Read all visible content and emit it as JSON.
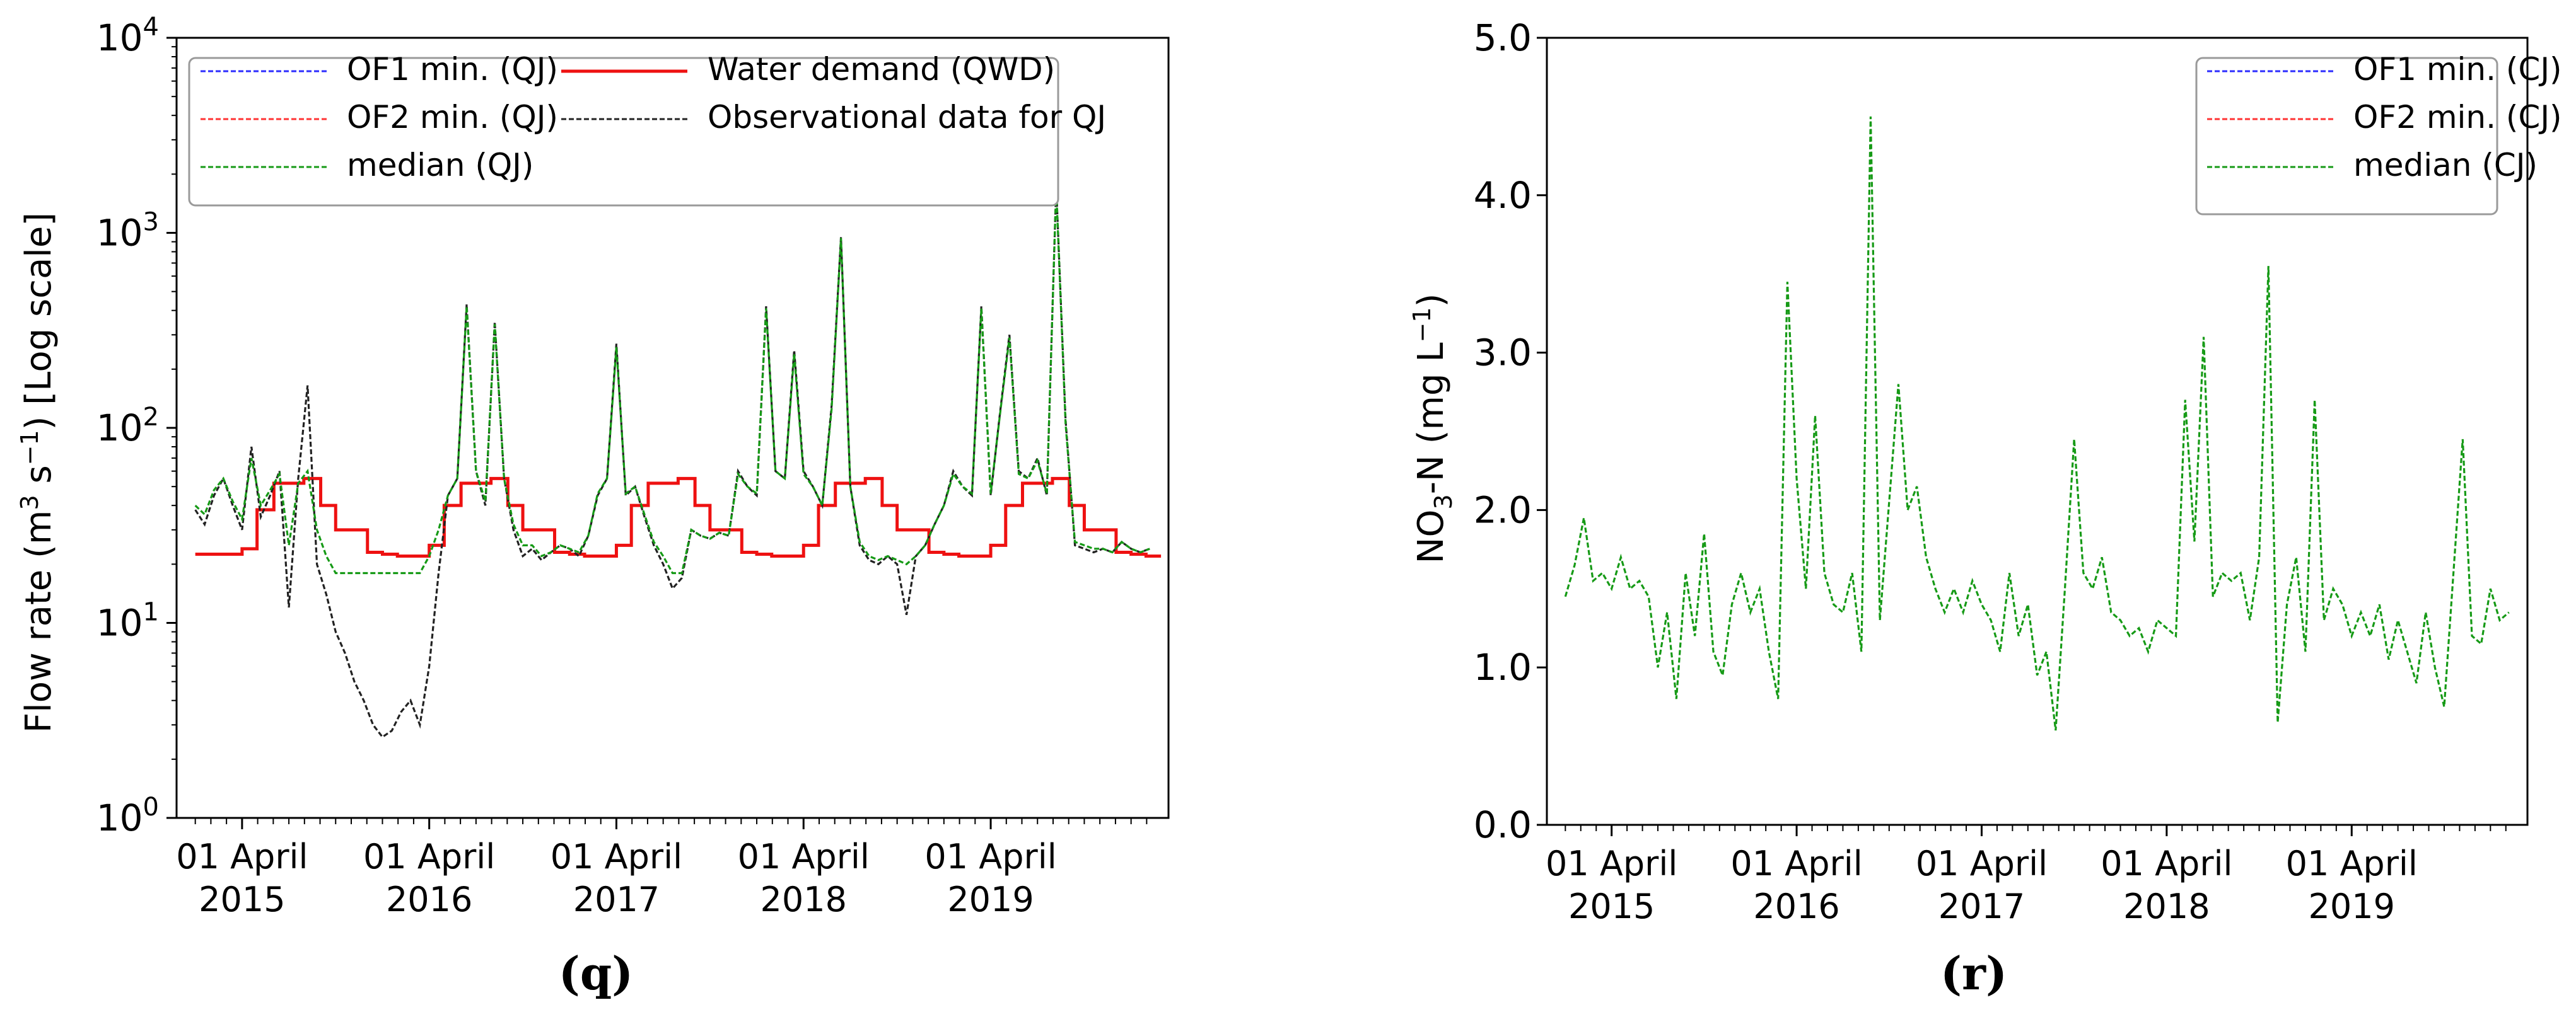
{
  "colors": {
    "of1": "#2b2bff",
    "of2": "#ff3333",
    "median": "#169a16",
    "demand": "#ee1111",
    "observed": "#222222",
    "axis": "#000000"
  },
  "chart_data": [
    {
      "panel": "q",
      "type": "line",
      "caption": "(q)",
      "yscale": "log",
      "ylim": [
        1,
        10000
      ],
      "yticks": [
        1,
        10,
        100,
        1000,
        10000
      ],
      "ytick_labels": [
        {
          "base": "10",
          "exp": "0"
        },
        {
          "base": "10",
          "exp": "1"
        },
        {
          "base": "10",
          "exp": "2"
        },
        {
          "base": "10",
          "exp": "3"
        },
        {
          "base": "10",
          "exp": "4"
        }
      ],
      "ylabel": {
        "prefix": "Flow rate (m",
        "sup1": "3",
        "mid": " s",
        "sup2": "−1",
        "suffix": ") [Log scale]"
      },
      "xlim": [
        2014.9,
        2020.2
      ],
      "xticks": [
        2015.25,
        2016.25,
        2017.25,
        2018.25,
        2019.25
      ],
      "xtick_labels": [
        [
          "01 April",
          "2015"
        ],
        [
          "01 April",
          "2016"
        ],
        [
          "01 April",
          "2017"
        ],
        [
          "01 April",
          "2018"
        ],
        [
          "01 April",
          "2019"
        ]
      ],
      "legend": {
        "position": "top",
        "entries": [
          {
            "label": "OF1 min. (QJ)",
            "style": "dashed",
            "color_key": "of1"
          },
          {
            "label": "OF2 min. (QJ)",
            "style": "dashed",
            "color_key": "of2"
          },
          {
            "label": "median (QJ)",
            "style": "dashed",
            "color_key": "median"
          },
          {
            "label": "Water demand (QWD)",
            "style": "solid",
            "color_key": "demand"
          },
          {
            "label": "Observational data for QJ",
            "style": "dashed",
            "color_key": "observed"
          }
        ]
      },
      "series": [
        {
          "name": "Water demand (QWD)",
          "color_key": "demand",
          "style": "solid",
          "step": true,
          "x": [
            2015.0,
            2015.25,
            2015.33,
            2015.42,
            2015.58,
            2015.67,
            2015.75,
            2015.92,
            2016.0,
            2016.08,
            2016.25,
            2016.33,
            2016.42,
            2016.58,
            2016.67,
            2016.75,
            2016.92,
            2017.0,
            2017.08,
            2017.25,
            2017.33,
            2017.42,
            2017.58,
            2017.67,
            2017.75,
            2017.92,
            2018.0,
            2018.08,
            2018.25,
            2018.33,
            2018.42,
            2018.58,
            2018.67,
            2018.75,
            2018.92,
            2019.0,
            2019.08,
            2019.25,
            2019.33,
            2019.42,
            2019.58,
            2019.67,
            2019.75,
            2019.92,
            2020.0,
            2020.08
          ],
          "y": [
            22.5,
            24,
            38,
            52,
            55,
            40,
            30,
            23,
            22.5,
            22,
            25,
            40,
            52,
            55,
            40,
            30,
            23,
            22.5,
            22,
            25,
            40,
            52,
            55,
            40,
            30,
            23,
            22.5,
            22,
            25,
            40,
            52,
            55,
            40,
            30,
            23,
            22.5,
            22,
            25,
            40,
            52,
            55,
            40,
            30,
            23,
            22.5,
            22
          ]
        },
        {
          "name": "Observational data for QJ",
          "color_key": "observed",
          "style": "dashed",
          "x": [
            2015.0,
            2015.05,
            2015.1,
            2015.15,
            2015.2,
            2015.25,
            2015.3,
            2015.35,
            2015.4,
            2015.45,
            2015.5,
            2015.55,
            2015.6,
            2015.65,
            2015.7,
            2015.75,
            2015.8,
            2015.85,
            2015.9,
            2015.95,
            2016.0,
            2016.05,
            2016.1,
            2016.15,
            2016.2,
            2016.25,
            2016.3,
            2016.35,
            2016.4,
            2016.45,
            2016.5,
            2016.55,
            2016.6,
            2016.65,
            2016.7,
            2016.75,
            2016.8,
            2016.85,
            2016.9,
            2016.95,
            2017.0,
            2017.05,
            2017.1,
            2017.15,
            2017.2,
            2017.25,
            2017.3,
            2017.35,
            2017.4,
            2017.45,
            2017.5,
            2017.55,
            2017.6,
            2017.65,
            2017.7,
            2017.75,
            2017.8,
            2017.85,
            2017.9,
            2017.95,
            2018.0,
            2018.05,
            2018.1,
            2018.15,
            2018.2,
            2018.25,
            2018.3,
            2018.35,
            2018.4,
            2018.45,
            2018.5,
            2018.55,
            2018.6,
            2018.65,
            2018.7,
            2018.75,
            2018.8,
            2018.85,
            2018.9,
            2018.95,
            2019.0,
            2019.05,
            2019.1,
            2019.15,
            2019.2,
            2019.25,
            2019.3,
            2019.35,
            2019.4,
            2019.45,
            2019.5,
            2019.55,
            2019.6,
            2019.65,
            2019.7,
            2019.75,
            2019.8,
            2019.85,
            2019.9,
            2019.95,
            2020.0,
            2020.05,
            2020.1
          ],
          "y": [
            38,
            32,
            45,
            55,
            40,
            30,
            80,
            35,
            45,
            60,
            12,
            55,
            165,
            20,
            14,
            9,
            7,
            5,
            4,
            3,
            2.6,
            2.8,
            3.5,
            4,
            3,
            6,
            18,
            45,
            55,
            430,
            60,
            40,
            350,
            55,
            30,
            22,
            24,
            21,
            23,
            25,
            24,
            22,
            28,
            45,
            55,
            270,
            45,
            50,
            35,
            25,
            20,
            15,
            17,
            30,
            28,
            27,
            29,
            28,
            60,
            50,
            45,
            420,
            60,
            55,
            250,
            60,
            50,
            40,
            130,
            950,
            50,
            25,
            21,
            20,
            22,
            20,
            11,
            22,
            25,
            32,
            40,
            60,
            50,
            45,
            420,
            45,
            120,
            300,
            60,
            55,
            70,
            45,
            1750,
            110,
            25,
            24,
            23,
            24,
            23,
            26,
            24,
            23,
            24
          ]
        },
        {
          "name": "median (QJ)",
          "color_key": "median",
          "style": "dashed",
          "x": [
            2015.0,
            2015.05,
            2015.1,
            2015.15,
            2015.2,
            2015.25,
            2015.3,
            2015.35,
            2015.4,
            2015.45,
            2015.5,
            2015.55,
            2015.6,
            2015.65,
            2015.7,
            2015.75,
            2015.8,
            2015.85,
            2015.9,
            2015.95,
            2016.0,
            2016.05,
            2016.1,
            2016.15,
            2016.2,
            2016.25,
            2016.3,
            2016.35,
            2016.4,
            2016.45,
            2016.5,
            2016.55,
            2016.6,
            2016.65,
            2016.7,
            2016.75,
            2016.8,
            2016.85,
            2016.9,
            2016.95,
            2017.0,
            2017.05,
            2017.1,
            2017.15,
            2017.2,
            2017.25,
            2017.3,
            2017.35,
            2017.4,
            2017.45,
            2017.5,
            2017.55,
            2017.6,
            2017.65,
            2017.7,
            2017.75,
            2017.8,
            2017.85,
            2017.9,
            2017.95,
            2018.0,
            2018.05,
            2018.1,
            2018.15,
            2018.2,
            2018.25,
            2018.3,
            2018.35,
            2018.4,
            2018.45,
            2018.5,
            2018.55,
            2018.6,
            2018.65,
            2018.7,
            2018.75,
            2018.8,
            2018.85,
            2018.9,
            2018.95,
            2019.0,
            2019.05,
            2019.1,
            2019.15,
            2019.2,
            2019.25,
            2019.3,
            2019.35,
            2019.4,
            2019.45,
            2019.5,
            2019.55,
            2019.6,
            2019.65,
            2019.7,
            2019.75,
            2019.8,
            2019.85,
            2019.9,
            2019.95,
            2020.0,
            2020.05,
            2020.1
          ],
          "y": [
            40,
            36,
            48,
            55,
            42,
            34,
            70,
            40,
            48,
            58,
            25,
            52,
            60,
            30,
            22,
            18,
            18,
            18,
            18,
            18,
            18,
            18,
            18,
            18,
            18,
            22,
            30,
            45,
            55,
            420,
            60,
            42,
            340,
            55,
            32,
            25,
            25,
            22,
            23,
            25,
            24,
            23,
            28,
            46,
            55,
            260,
            46,
            50,
            36,
            26,
            22,
            18,
            18,
            30,
            28,
            27,
            29,
            28,
            58,
            50,
            46,
            410,
            60,
            55,
            240,
            58,
            50,
            40,
            125,
            940,
            50,
            26,
            22,
            21,
            22,
            21,
            20,
            22,
            25,
            32,
            40,
            58,
            50,
            46,
            410,
            46,
            118,
            290,
            58,
            55,
            68,
            46,
            1700,
            105,
            26,
            25,
            24,
            24,
            23,
            26,
            24,
            23,
            24
          ]
        }
      ]
    },
    {
      "panel": "r",
      "type": "line",
      "caption": "(r)",
      "yscale": "linear",
      "ylim": [
        0,
        5
      ],
      "yticks": [
        0,
        1,
        2,
        3,
        4,
        5
      ],
      "ytick_labels": [
        "0.0",
        "1.0",
        "2.0",
        "3.0",
        "4.0",
        "5.0"
      ],
      "ylabel": {
        "prefix": "NO",
        "sub": "3",
        "mid": "-N (mg L",
        "sup": "−1",
        "suffix": ")"
      },
      "xlim": [
        2014.9,
        2020.2
      ],
      "xticks": [
        2015.25,
        2016.25,
        2017.25,
        2018.25,
        2019.25
      ],
      "xtick_labels": [
        [
          "01 April",
          "2015"
        ],
        [
          "01 April",
          "2016"
        ],
        [
          "01 April",
          "2017"
        ],
        [
          "01 April",
          "2018"
        ],
        [
          "01 April",
          "2019"
        ]
      ],
      "legend": {
        "position": "top-right",
        "entries": [
          {
            "label": "OF1 min. (CJ)",
            "style": "dashed",
            "color_key": "of1"
          },
          {
            "label": "OF2 min. (CJ)",
            "style": "dashed",
            "color_key": "of2"
          },
          {
            "label": "median (CJ)",
            "style": "dashed",
            "color_key": "median"
          }
        ]
      },
      "series": [
        {
          "name": "median (CJ)",
          "color_key": "median",
          "style": "dashed",
          "x": [
            2015.0,
            2015.05,
            2015.1,
            2015.15,
            2015.2,
            2015.25,
            2015.3,
            2015.35,
            2015.4,
            2015.45,
            2015.5,
            2015.55,
            2015.6,
            2015.65,
            2015.7,
            2015.75,
            2015.8,
            2015.85,
            2015.9,
            2015.95,
            2016.0,
            2016.05,
            2016.1,
            2016.15,
            2016.2,
            2016.25,
            2016.3,
            2016.35,
            2016.4,
            2016.45,
            2016.5,
            2016.55,
            2016.6,
            2016.65,
            2016.7,
            2016.75,
            2016.8,
            2016.85,
            2016.9,
            2016.95,
            2017.0,
            2017.05,
            2017.1,
            2017.15,
            2017.2,
            2017.25,
            2017.3,
            2017.35,
            2017.4,
            2017.45,
            2017.5,
            2017.55,
            2017.6,
            2017.65,
            2017.7,
            2017.75,
            2017.8,
            2017.85,
            2017.9,
            2017.95,
            2018.0,
            2018.05,
            2018.1,
            2018.15,
            2018.2,
            2018.25,
            2018.3,
            2018.35,
            2018.4,
            2018.45,
            2018.5,
            2018.55,
            2018.6,
            2018.65,
            2018.7,
            2018.75,
            2018.8,
            2018.85,
            2018.9,
            2018.95,
            2019.0,
            2019.05,
            2019.1,
            2019.15,
            2019.2,
            2019.25,
            2019.3,
            2019.35,
            2019.4,
            2019.45,
            2019.5,
            2019.55,
            2019.6,
            2019.65,
            2019.7,
            2019.75,
            2019.8,
            2019.85,
            2019.9,
            2019.95,
            2020.0,
            2020.05,
            2020.1
          ],
          "y": [
            1.45,
            1.65,
            1.95,
            1.55,
            1.6,
            1.5,
            1.7,
            1.5,
            1.55,
            1.45,
            1.0,
            1.35,
            0.8,
            1.6,
            1.2,
            1.85,
            1.1,
            0.95,
            1.4,
            1.6,
            1.35,
            1.5,
            1.1,
            0.8,
            3.45,
            2.2,
            1.5,
            2.6,
            1.6,
            1.4,
            1.35,
            1.6,
            1.1,
            4.5,
            1.3,
            2.05,
            2.8,
            2.0,
            2.15,
            1.7,
            1.5,
            1.35,
            1.5,
            1.35,
            1.55,
            1.4,
            1.3,
            1.1,
            1.6,
            1.2,
            1.4,
            0.95,
            1.1,
            0.6,
            1.5,
            2.45,
            1.6,
            1.5,
            1.7,
            1.35,
            1.3,
            1.2,
            1.25,
            1.1,
            1.3,
            1.25,
            1.2,
            2.7,
            1.8,
            3.1,
            1.45,
            1.6,
            1.55,
            1.6,
            1.3,
            1.7,
            3.55,
            0.65,
            1.4,
            1.7,
            1.1,
            2.7,
            1.3,
            1.5,
            1.4,
            1.2,
            1.35,
            1.2,
            1.4,
            1.05,
            1.3,
            1.1,
            0.9,
            1.35,
            1.0,
            0.75,
            1.6,
            2.45,
            1.2,
            1.15,
            1.5,
            1.3,
            1.35
          ]
        }
      ]
    }
  ]
}
